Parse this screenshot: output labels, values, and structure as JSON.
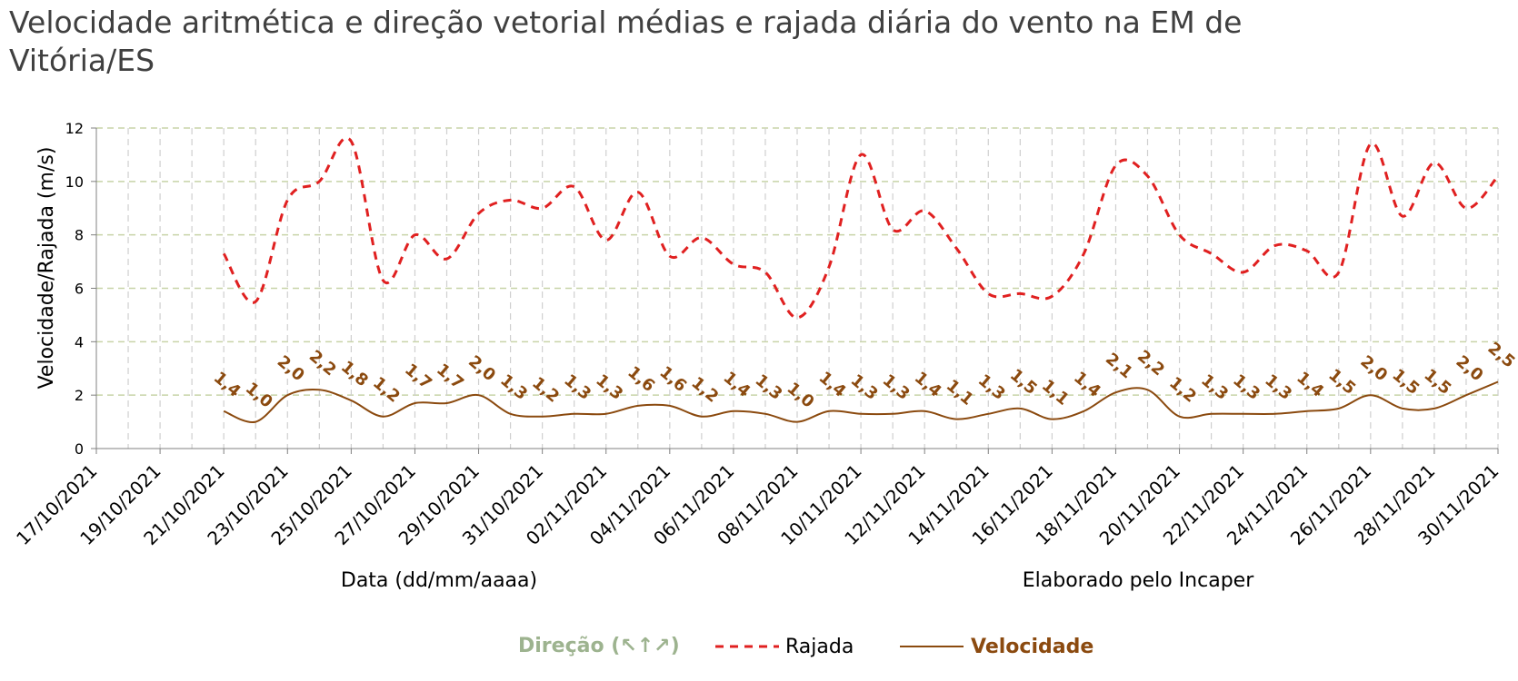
{
  "title": "Velocidade aritmética e direção vetorial médias e rajada diária do vento na EM de Vitória/ES",
  "colors": {
    "rajada": "#E02020",
    "velocidade": "#8B4A0F",
    "direcao": "#9DB38F",
    "grid": "#C8D4A8"
  },
  "footer": {
    "xlabel": "Data (dd/mm/aaaa)",
    "credit": "Elaborado pelo Incaper"
  },
  "legend": {
    "direcao": "Direção (↖↑↗)",
    "rajada": "Rajada",
    "velocidade": "Velocidade"
  },
  "chart_data": {
    "type": "line",
    "ylabel": "Velocidade/Rajada (m/s)",
    "xlabel": "Data (dd/mm/aaaa)",
    "ylim": [
      0,
      12
    ],
    "yticks": [
      0,
      2,
      4,
      6,
      8,
      10,
      12
    ],
    "grid": true,
    "legend_position": "bottom",
    "x_start": "17/10/2021",
    "x_end": "30/11/2021",
    "xtick_labels": [
      "17/10/2021",
      "19/10/2021",
      "21/10/2021",
      "23/10/2021",
      "25/10/2021",
      "27/10/2021",
      "29/10/2021",
      "31/10/2021",
      "02/11/2021",
      "04/11/2021",
      "06/11/2021",
      "08/11/2021",
      "10/11/2021",
      "12/11/2021",
      "14/11/2021",
      "16/11/2021",
      "18/11/2021",
      "20/11/2021",
      "22/11/2021",
      "24/11/2021",
      "26/11/2021",
      "28/11/2021",
      "30/11/2021"
    ],
    "x": [
      "21/10/2021",
      "22/10/2021",
      "23/10/2021",
      "24/10/2021",
      "25/10/2021",
      "26/10/2021",
      "27/10/2021",
      "28/10/2021",
      "29/10/2021",
      "30/10/2021",
      "31/10/2021",
      "01/11/2021",
      "02/11/2021",
      "03/11/2021",
      "04/11/2021",
      "05/11/2021",
      "06/11/2021",
      "07/11/2021",
      "08/11/2021",
      "09/11/2021",
      "10/11/2021",
      "11/11/2021",
      "12/11/2021",
      "13/11/2021",
      "14/11/2021",
      "15/11/2021",
      "16/11/2021",
      "17/11/2021",
      "18/11/2021",
      "19/11/2021",
      "20/11/2021",
      "21/11/2021",
      "22/11/2021",
      "23/11/2021",
      "24/11/2021",
      "25/11/2021",
      "26/11/2021",
      "27/11/2021",
      "28/11/2021",
      "29/11/2021",
      "30/11/2021"
    ],
    "series": [
      {
        "name": "Rajada",
        "style": "dashed",
        "values": [
          7.3,
          5.5,
          9.3,
          10.0,
          11.5,
          6.3,
          8.0,
          7.1,
          8.8,
          9.3,
          9.0,
          9.8,
          7.8,
          9.6,
          7.2,
          7.9,
          6.9,
          6.6,
          4.9,
          6.8,
          11.0,
          8.2,
          8.9,
          7.5,
          5.8,
          5.8,
          5.7,
          7.3,
          10.6,
          10.2,
          8.0,
          7.3,
          6.6,
          7.6,
          7.4,
          6.6,
          11.4,
          8.7,
          10.7,
          9.0,
          10.2
        ]
      },
      {
        "name": "Velocidade",
        "style": "solid",
        "values": [
          1.4,
          1.0,
          2.0,
          2.2,
          1.8,
          1.2,
          1.7,
          1.7,
          2.0,
          1.3,
          1.2,
          1.3,
          1.3,
          1.6,
          1.6,
          1.2,
          1.4,
          1.3,
          1.0,
          1.4,
          1.3,
          1.3,
          1.4,
          1.1,
          1.3,
          1.5,
          1.1,
          1.4,
          2.1,
          2.2,
          1.2,
          1.3,
          1.3,
          1.3,
          1.4,
          1.5,
          2.0,
          1.5,
          1.5,
          2.0,
          2.5
        ],
        "data_labels": [
          "1,4",
          "1,0",
          "2,0",
          "2,2",
          "1,8",
          "1,2",
          "1,7",
          "1,7",
          "2,0",
          "1,3",
          "1,2",
          "1,3",
          "1,3",
          "1,6",
          "1,6",
          "1,2",
          "1,4",
          "1,3",
          "1,0",
          "1,4",
          "1,3",
          "1,3",
          "1,4",
          "1,1",
          "1,3",
          "1,5",
          "1,1",
          "1,4",
          "2,1",
          "2,2",
          "1,2",
          "1,3",
          "1,3",
          "1,3",
          "1,4",
          "1,5",
          "2,0",
          "1,5",
          "1,5",
          "2,0",
          "2,5"
        ]
      }
    ]
  }
}
